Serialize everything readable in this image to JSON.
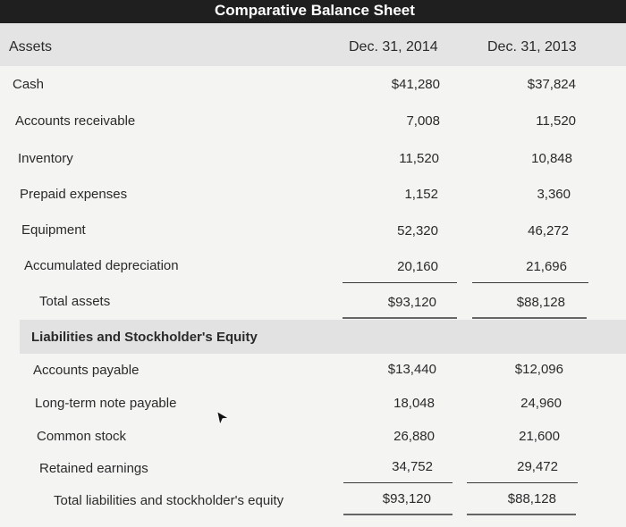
{
  "title": "Comparative Balance Sheet",
  "headers": {
    "assets": "Assets",
    "col1": "Dec. 31, 2014",
    "col2": "Dec. 31, 2013"
  },
  "assets": [
    {
      "label": "Cash",
      "v2014": "$41,280",
      "v2013": "$37,824"
    },
    {
      "label": "Accounts receivable",
      "v2014": "7,008",
      "v2013": "11,520"
    },
    {
      "label": "Inventory",
      "v2014": "11,520",
      "v2013": "10,848"
    },
    {
      "label": "Prepaid expenses",
      "v2014": "1,152",
      "v2013": "3,360"
    },
    {
      "label": "Equipment",
      "v2014": "52,320",
      "v2013": "46,272"
    },
    {
      "label": "Accumulated depreciation",
      "v2014": "20,160",
      "v2013": "21,696"
    },
    {
      "label": "Total assets",
      "v2014": "$93,120",
      "v2013": "$88,128"
    }
  ],
  "liabilities_heading": "Liabilities and Stockholder's Equity",
  "liabilities": [
    {
      "label": "Accounts payable",
      "v2014": "$13,440",
      "v2013": "$12,096"
    },
    {
      "label": "Long-term note payable",
      "v2014": "18,048",
      "v2013": "24,960"
    },
    {
      "label": "Common stock",
      "v2014": "26,880",
      "v2013": "21,600"
    },
    {
      "label": "Retained earnings",
      "v2014": "34,752",
      "v2013": "29,472"
    },
    {
      "label": "Total liabilities and stockholder's equity",
      "v2014": "$93,120",
      "v2013": "$88,128"
    }
  ]
}
